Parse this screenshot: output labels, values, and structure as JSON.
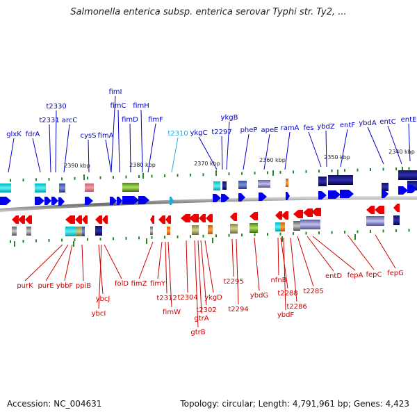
{
  "title": "Salmonella enterica subsp. enterica serovar Typhi str. Ty2, ...",
  "footer": {
    "accession": "Accession: NC_004631",
    "topology": "Topology: circular; Length: 4,791,961 bp; Genes: 4,423"
  },
  "colors": {
    "upper_label": "#0000cc",
    "highlight_label": "#22aadd",
    "lower_label": "#cc0000",
    "backbone": "#888888",
    "tick": "#228822"
  },
  "kbp_labels": [
    "2390 kbp",
    "2380 kbp",
    "2370 kbp",
    "2360 kbp",
    "2350 kbp",
    "2340 kbp"
  ],
  "upper_genes": [
    "glxK",
    "fdrA",
    "t2331",
    "t2330",
    "arcC",
    "cysS",
    "fimA",
    "fimI",
    "fimC",
    "fimD",
    "fimH",
    "fimF",
    "t2310",
    "ykgC",
    "t2297",
    "ykgB",
    "pheP",
    "apeE",
    "ramA",
    "fes",
    "ybdZ",
    "entF",
    "ybdA",
    "entC",
    "entE"
  ],
  "lower_genes": [
    "purK",
    "purE",
    "ybbF",
    "ppiB",
    "ybcJ",
    "ybcI",
    "folD",
    "fimZ",
    "fimY",
    "t2312",
    "fimW",
    "t2304",
    "gtrA",
    "gtrB",
    "t2302",
    "ykgD",
    "t2295",
    "t2294",
    "ybdG",
    "nfnB",
    "t2288",
    "ybdF",
    "t2286",
    "t2285",
    "entD",
    "fepA",
    "fepC",
    "fepG"
  ]
}
